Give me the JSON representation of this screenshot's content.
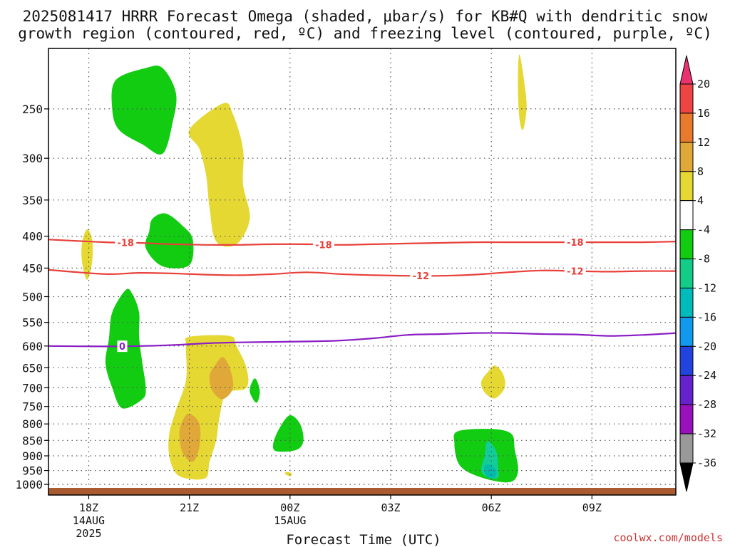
{
  "chart_data": {
    "type": "contour",
    "title_line1": "2025081417 HRRR Forecast Omega (shaded, μbar/s) for KB#Q with dendritic snow",
    "title_line2": "growth region (contoured, red, ºC) and freezing level (contoured, purple, ºC)",
    "xlabel": "Forecast Time (UTC)",
    "ylabel": "",
    "y_scale": "log-pressure",
    "ylim": [
      1040,
      200
    ],
    "xlim": [
      -1.2,
      17.5
    ],
    "x_ticks": [
      {
        "hour": 0,
        "label": "18Z",
        "sub1": "14AUG",
        "sub2": "2025"
      },
      {
        "hour": 3,
        "label": "21Z",
        "sub1": "",
        "sub2": ""
      },
      {
        "hour": 6,
        "label": "00Z",
        "sub1": "15AUG",
        "sub2": ""
      },
      {
        "hour": 9,
        "label": "03Z",
        "sub1": "",
        "sub2": ""
      },
      {
        "hour": 12,
        "label": "06Z",
        "sub1": "",
        "sub2": ""
      },
      {
        "hour": 15,
        "label": "09Z",
        "sub1": "",
        "sub2": ""
      }
    ],
    "y_ticks": [
      250,
      300,
      350,
      400,
      450,
      500,
      550,
      600,
      650,
      700,
      750,
      800,
      850,
      900,
      950,
      1000
    ],
    "grid": true,
    "contours": [
      {
        "label": "-18",
        "color": "#e8403a",
        "labels_at": [
          1.1,
          7.0,
          14.5
        ],
        "x": [
          -1.2,
          0.5,
          1.5,
          2.5,
          3.5,
          4.5,
          5.5,
          6.5,
          7.5,
          8.5,
          9.5,
          10.5,
          11.5,
          12.5,
          13.5,
          14.5,
          15.5,
          16.5,
          17.5
        ],
        "p": [
          405,
          409,
          410,
          412,
          413,
          413,
          412,
          412,
          413,
          412,
          411,
          410,
          409,
          409,
          409,
          409,
          409,
          409,
          408
        ]
      },
      {
        "label": "-12",
        "color": "#e8403a",
        "labels_at": [
          9.9,
          14.5
        ],
        "x": [
          -1.2,
          0.5,
          1.5,
          2.5,
          3.5,
          4.5,
          5.5,
          6.5,
          7.5,
          8.5,
          9.5,
          10.5,
          11.5,
          12.5,
          13.5,
          14.5,
          15.5,
          16.5,
          17.5
        ],
        "p": [
          453,
          460,
          458,
          459,
          461,
          462,
          460,
          457,
          460,
          462,
          463,
          463,
          461,
          457,
          454,
          455,
          456,
          455,
          455
        ]
      },
      {
        "label": "0",
        "color": "#8a1fc4",
        "labels_at": [
          1.0
        ],
        "x": [
          -1.2,
          0.5,
          1.5,
          2.5,
          3.5,
          4.5,
          5.5,
          6.5,
          7.5,
          8.5,
          9.5,
          10.5,
          11.5,
          12.5,
          13.5,
          14.5,
          15.5,
          16.5,
          17.5
        ],
        "p": [
          600,
          601,
          600,
          598,
          594,
          592,
          591,
          590,
          588,
          583,
          576,
          574,
          572,
          572,
          574,
          575,
          578,
          576,
          572
        ]
      }
    ],
    "omega_regions": [
      {
        "range": "-8 to -4",
        "color": "#11cc11",
        "pts": [
          [
            1.7,
            215
          ],
          [
            2.2,
            215
          ],
          [
            2.6,
            236
          ],
          [
            2.5,
            263
          ],
          [
            2.2,
            295
          ],
          [
            1.6,
            285
          ],
          [
            0.9,
            270
          ],
          [
            0.7,
            250
          ],
          [
            0.8,
            225
          ]
        ]
      },
      {
        "range": "-8 to -4",
        "color": "#11cc11",
        "pts": [
          [
            1.9,
            375
          ],
          [
            2.3,
            368
          ],
          [
            2.8,
            385
          ],
          [
            3.1,
            405
          ],
          [
            3.0,
            445
          ],
          [
            2.2,
            447
          ],
          [
            1.7,
            418
          ],
          [
            1.8,
            393
          ]
        ]
      },
      {
        "range": "-8 to -4",
        "color": "#11cc11",
        "pts": [
          [
            1.1,
            488
          ],
          [
            1.3,
            495
          ],
          [
            1.5,
            530
          ],
          [
            1.5,
            580
          ],
          [
            1.6,
            640
          ],
          [
            1.7,
            700
          ],
          [
            1.6,
            730
          ],
          [
            1.0,
            755
          ],
          [
            0.7,
            700
          ],
          [
            0.5,
            640
          ],
          [
            0.6,
            585
          ],
          [
            0.7,
            530
          ]
        ]
      },
      {
        "range": "-8 to -4",
        "color": "#11cc11",
        "pts": [
          [
            6.0,
            775
          ],
          [
            6.3,
            800
          ],
          [
            6.4,
            850
          ],
          [
            6.2,
            880
          ],
          [
            5.6,
            885
          ],
          [
            5.5,
            860
          ],
          [
            5.7,
            810
          ]
        ]
      },
      {
        "range": "-8 to -4",
        "color": "#11cc11",
        "pts": [
          [
            5.0,
            680
          ],
          [
            5.1,
            710
          ],
          [
            5.0,
            740
          ],
          [
            4.8,
            710
          ],
          [
            4.9,
            680
          ]
        ]
      },
      {
        "range": "-8 to -4",
        "color": "#11cc11",
        "pts": [
          [
            11.0,
            822
          ],
          [
            12.0,
            815
          ],
          [
            12.6,
            830
          ],
          [
            12.7,
            880
          ],
          [
            12.8,
            950
          ],
          [
            12.6,
            990
          ],
          [
            12.0,
            985
          ],
          [
            11.3,
            955
          ],
          [
            11.0,
            920
          ],
          [
            10.9,
            860
          ]
        ]
      },
      {
        "range": "-12 to -8",
        "color": "#12cc99",
        "pts": [
          [
            11.85,
            860
          ],
          [
            11.95,
            855
          ],
          [
            12.15,
            885
          ],
          [
            12.2,
            930
          ],
          [
            12.2,
            975
          ],
          [
            11.9,
            975
          ],
          [
            11.7,
            950
          ],
          [
            11.8,
            900
          ]
        ]
      },
      {
        "range": "-16 to -12",
        "color": "#00bbaa",
        "pts": [
          [
            11.8,
            935
          ],
          [
            11.95,
            930
          ],
          [
            12.15,
            950
          ],
          [
            12.1,
            975
          ],
          [
            11.9,
            975
          ],
          [
            11.8,
            955
          ]
        ]
      },
      {
        "range": "4 to 8",
        "color": "#e6d833",
        "pts": [
          [
            4.0,
            245
          ],
          [
            4.3,
            255
          ],
          [
            4.6,
            290
          ],
          [
            4.6,
            330
          ],
          [
            4.8,
            375
          ],
          [
            4.4,
            412
          ],
          [
            3.8,
            408
          ],
          [
            3.6,
            360
          ],
          [
            3.5,
            320
          ],
          [
            3.3,
            290
          ],
          [
            3.0,
            270
          ]
        ]
      },
      {
        "range": "4 to 8",
        "color": "#e6d833",
        "pts": [
          [
            -0.05,
            390
          ],
          [
            0.1,
            405
          ],
          [
            0.1,
            440
          ],
          [
            -0.05,
            470
          ],
          [
            -0.2,
            440
          ],
          [
            -0.2,
            410
          ]
        ]
      },
      {
        "range": "4 to 8",
        "color": "#e6d833",
        "pts": [
          [
            3.0,
            580
          ],
          [
            4.2,
            578
          ],
          [
            4.4,
            600
          ],
          [
            4.7,
            650
          ],
          [
            4.7,
            700
          ],
          [
            4.1,
            715
          ],
          [
            3.9,
            780
          ],
          [
            3.8,
            850
          ],
          [
            3.6,
            920
          ],
          [
            3.5,
            975
          ],
          [
            3.0,
            980
          ],
          [
            2.6,
            960
          ],
          [
            2.4,
            900
          ],
          [
            2.4,
            830
          ],
          [
            2.6,
            760
          ],
          [
            2.9,
            680
          ],
          [
            2.9,
            600
          ]
        ]
      },
      {
        "range": "4 to 8",
        "color": "#e6d833",
        "pts": [
          [
            12.1,
            645
          ],
          [
            12.35,
            665
          ],
          [
            12.4,
            700
          ],
          [
            12.1,
            728
          ],
          [
            11.8,
            712
          ],
          [
            11.7,
            685
          ],
          [
            11.9,
            660
          ]
        ]
      },
      {
        "range": "4 to 8",
        "color": "#e6d833",
        "pts": [
          [
            12.85,
            205
          ],
          [
            13.0,
            230
          ],
          [
            13.05,
            250
          ],
          [
            12.95,
            270
          ],
          [
            12.85,
            262
          ],
          [
            12.8,
            240
          ],
          [
            12.8,
            215
          ]
        ]
      },
      {
        "range": "4 to 8",
        "color": "#e6d833",
        "pts": [
          [
            5.9,
            955
          ],
          [
            6.05,
            960
          ],
          [
            6.0,
            970
          ],
          [
            5.85,
            962
          ]
        ]
      },
      {
        "range": "8 to 12",
        "color": "#e0a838",
        "pts": [
          [
            4.0,
            625
          ],
          [
            4.2,
            650
          ],
          [
            4.3,
            700
          ],
          [
            4.0,
            730
          ],
          [
            3.7,
            710
          ],
          [
            3.6,
            670
          ],
          [
            3.8,
            640
          ]
        ]
      },
      {
        "range": "8 to 12",
        "color": "#e0a838",
        "pts": [
          [
            3.0,
            770
          ],
          [
            3.3,
            800
          ],
          [
            3.3,
            870
          ],
          [
            3.1,
            920
          ],
          [
            2.8,
            890
          ],
          [
            2.7,
            830
          ],
          [
            2.8,
            790
          ]
        ]
      }
    ],
    "colorbar": {
      "levels": [
        "20",
        "16",
        "12",
        "8",
        "4",
        "-4",
        "-8",
        "-12",
        "-16",
        "-20",
        "-24",
        "-28",
        "-32",
        "-36"
      ],
      "colors": [
        "#e8336e",
        "#ee4444",
        "#e87a2d",
        "#e0a838",
        "#e6d833",
        "#ffffff",
        "#11cc11",
        "#12cc88",
        "#00bbbb",
        "#1199ee",
        "#2244dd",
        "#6622cc",
        "#9911bb",
        "#999999",
        "#000000"
      ]
    },
    "ground_color": "#a95a2e"
  },
  "credit": "coolwx.com/models"
}
